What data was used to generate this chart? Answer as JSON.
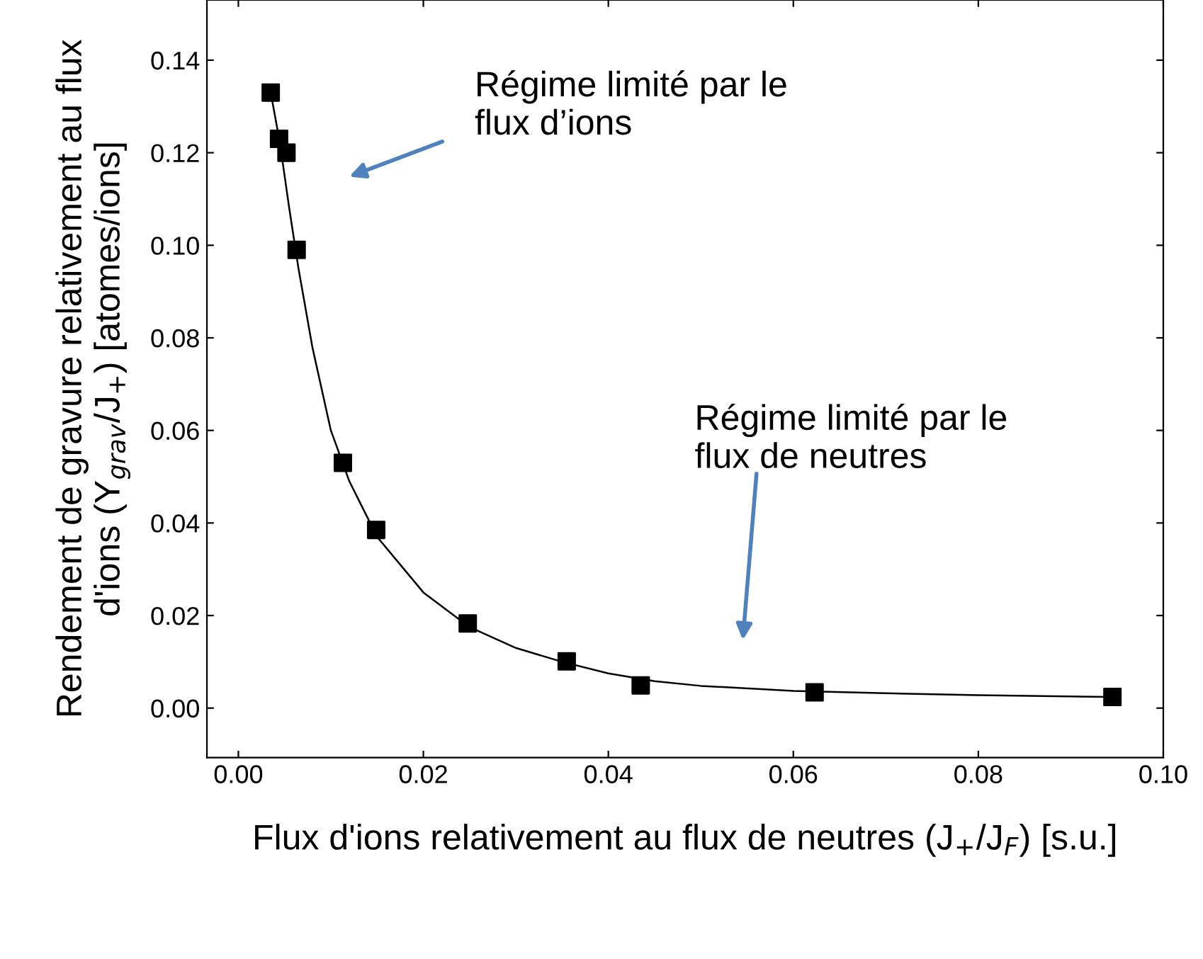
{
  "chart_data": {
    "type": "scatter",
    "xlabel": "Flux d'ions relativement au flux de neutres (J$_{+}$/J$_{F}$) [s.u.]",
    "ylabel": "Rendement de gravure relativement au flux d'ions (Y$_{grav}$/J$_{+}$) [atomes/ions]",
    "series": [
      {
        "color": "#000000",
        "marker": "square",
        "x": [
          0.0035,
          0.0044,
          0.0052,
          0.0063,
          0.0113,
          0.0149,
          0.0248,
          0.0355,
          0.0435,
          0.0623,
          0.0945
        ],
        "values": [
          0.133,
          0.123,
          0.12,
          0.099,
          0.053,
          0.0385,
          0.0183,
          0.0101,
          0.0049,
          0.0034,
          0.0024
        ]
      },
      {
        "type": "line",
        "color": "#000000",
        "marker": "none",
        "x": [
          0.0035,
          0.0045,
          0.0055,
          0.0065,
          0.008,
          0.01,
          0.012,
          0.015,
          0.02,
          0.025,
          0.03,
          0.035,
          0.04,
          0.045,
          0.05,
          0.06,
          0.07,
          0.08,
          0.094
        ],
        "values": [
          0.133,
          0.122,
          0.108,
          0.095,
          0.078,
          0.06,
          0.049,
          0.037,
          0.025,
          0.0175,
          0.013,
          0.01,
          0.0075,
          0.0058,
          0.0048,
          0.0037,
          0.0032,
          0.0028,
          0.0024
        ]
      }
    ],
    "annotations": [
      "Régime limité par le\nflux d’ions",
      "Régime limité par le\nflux de neutres"
    ],
    "xlim": [
      -0.0034,
      0.1
    ],
    "ylim": [
      -0.0107,
      0.153
    ],
    "xticks": [
      {
        "value": 0.0,
        "label": "0.00"
      },
      {
        "value": 0.02,
        "label": "0.02"
      },
      {
        "value": 0.04,
        "label": "0.04"
      },
      {
        "value": 0.06,
        "label": "0.06"
      },
      {
        "value": 0.08,
        "label": "0.08"
      },
      {
        "value": 0.1,
        "label": "0.10"
      }
    ],
    "yticks": [
      {
        "value": 0.0,
        "label": "0.00"
      },
      {
        "value": 0.02,
        "label": "0.02"
      },
      {
        "value": 0.04,
        "label": "0.04"
      },
      {
        "value": 0.06,
        "label": "0.06"
      },
      {
        "value": 0.08,
        "label": "0.08"
      },
      {
        "value": 0.1,
        "label": "0.10"
      },
      {
        "value": 0.12,
        "label": "0.12"
      },
      {
        "value": 0.14,
        "label": "0.14"
      }
    ],
    "grid": false,
    "legend": false
  }
}
